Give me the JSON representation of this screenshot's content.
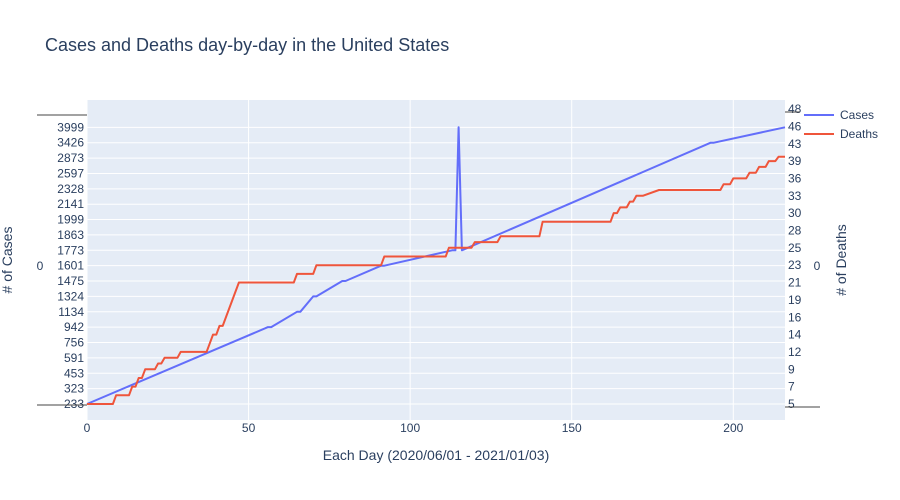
{
  "chart_data": {
    "type": "line",
    "title": "Cases and Deaths day-by-day in the United States",
    "xlabel": "Each Day (2020/06/01 - 2021/01/03)",
    "ylabel_left": "# of Cases",
    "ylabel_right": "# of Deaths",
    "xlim": [
      0,
      216
    ],
    "x_ticks": [
      "0",
      "50",
      "100",
      "150",
      "200"
    ],
    "y_left_ticks": [
      "233",
      "323",
      "453",
      "591",
      "756",
      "942",
      "1134",
      "1324",
      "1475",
      "1601",
      "1773",
      "1863",
      "1999",
      "2141",
      "2328",
      "2597",
      "2873",
      "3426",
      "3999"
    ],
    "y_right_ticks": [
      "5",
      "7",
      "9",
      "12",
      "14",
      "16",
      "19",
      "21",
      "23",
      "25",
      "28",
      "30",
      "33",
      "36",
      "39",
      "43",
      "46",
      "48"
    ],
    "stray_left_label": "0",
    "stray_right_label": "0",
    "legend_position": "top-right",
    "series": [
      {
        "name": "Cases",
        "axis": "left",
        "color": "#636efa",
        "points": [
          [
            0,
            233
          ],
          [
            56,
            942
          ],
          [
            57,
            942
          ],
          [
            65,
            1134
          ],
          [
            66,
            1134
          ],
          [
            70,
            1324
          ],
          [
            71,
            1324
          ],
          [
            79,
            1475
          ],
          [
            80,
            1475
          ],
          [
            91,
            1601
          ],
          [
            92,
            1601
          ],
          [
            113,
            1773
          ],
          [
            114,
            1773
          ],
          [
            115,
            3999
          ],
          [
            116,
            1773
          ],
          [
            193,
            3426
          ],
          [
            194,
            3426
          ],
          [
            216,
            3999
          ]
        ]
      },
      {
        "name": "Deaths",
        "axis": "right",
        "color": "#ef553b",
        "points": [
          [
            0,
            5
          ],
          [
            8,
            5
          ],
          [
            9,
            6
          ],
          [
            13,
            6
          ],
          [
            14,
            7
          ],
          [
            15,
            7
          ],
          [
            16,
            8
          ],
          [
            17,
            8
          ],
          [
            18,
            9
          ],
          [
            21,
            9
          ],
          [
            22,
            10
          ],
          [
            23,
            10
          ],
          [
            24,
            11
          ],
          [
            28,
            11
          ],
          [
            29,
            12
          ],
          [
            37,
            12
          ],
          [
            38,
            13
          ],
          [
            39,
            14
          ],
          [
            40,
            14
          ],
          [
            41,
            15
          ],
          [
            42,
            15
          ],
          [
            47,
            21
          ],
          [
            64,
            21
          ],
          [
            65,
            22
          ],
          [
            70,
            22
          ],
          [
            71,
            23
          ],
          [
            91,
            23
          ],
          [
            92,
            24
          ],
          [
            111,
            24
          ],
          [
            112,
            25
          ],
          [
            119,
            25
          ],
          [
            120,
            26
          ],
          [
            127,
            26
          ],
          [
            128,
            27
          ],
          [
            140,
            27
          ],
          [
            141,
            29
          ],
          [
            162,
            29
          ],
          [
            163,
            30
          ],
          [
            164,
            30
          ],
          [
            165,
            31
          ],
          [
            167,
            31
          ],
          [
            168,
            32
          ],
          [
            169,
            32
          ],
          [
            170,
            33
          ],
          [
            172,
            33
          ],
          [
            177,
            34
          ],
          [
            196,
            34
          ],
          [
            197,
            35
          ],
          [
            199,
            35
          ],
          [
            200,
            36
          ],
          [
            204,
            36
          ],
          [
            205,
            37
          ],
          [
            207,
            37
          ],
          [
            208,
            38
          ],
          [
            210,
            38
          ],
          [
            211,
            39
          ],
          [
            213,
            39
          ],
          [
            214,
            40
          ],
          [
            216,
            40
          ]
        ]
      }
    ]
  }
}
